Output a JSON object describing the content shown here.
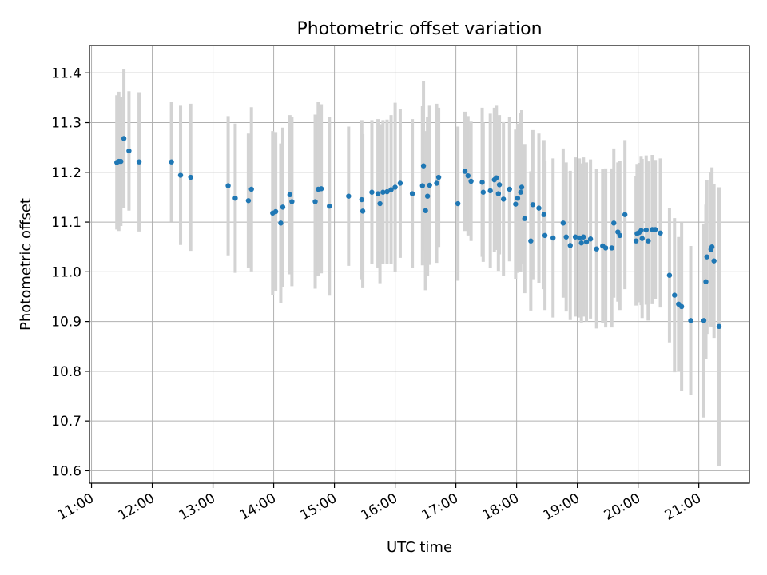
{
  "chart_data": {
    "type": "scatter",
    "title": "Photometric offset variation",
    "xlabel": "UTC time",
    "ylabel": "Photometric offset",
    "xlim": [
      "10:58",
      "21:50"
    ],
    "ylim": [
      10.575,
      11.455
    ],
    "x_ticks": [
      "11:00",
      "12:00",
      "13:00",
      "14:00",
      "15:00",
      "16:00",
      "17:00",
      "18:00",
      "19:00",
      "20:00",
      "21:00"
    ],
    "y_ticks": [
      10.6,
      10.7,
      10.8,
      10.9,
      11.0,
      11.1,
      11.2,
      11.3,
      11.4
    ],
    "y_tick_labels": [
      "10.6",
      "10.7",
      "10.8",
      "10.9",
      "11.0",
      "11.1",
      "11.2",
      "11.3",
      "11.4"
    ],
    "grid": true,
    "colors": {
      "point": "#1f77b4",
      "errorbar": "#d3d3d3"
    },
    "series": [
      {
        "points": [
          [
            "11:25",
            11.22,
            0.135
          ],
          [
            "11:27",
            11.222,
            0.14
          ],
          [
            "11:29",
            11.222,
            0.13
          ],
          [
            "11:32",
            11.268,
            0.14
          ],
          [
            "11:37",
            11.243,
            0.12
          ],
          [
            "11:47",
            11.221,
            0.14
          ],
          [
            "12:19",
            11.221,
            0.12
          ],
          [
            "12:28",
            11.194,
            0.14
          ],
          [
            "12:38",
            11.19,
            0.148
          ],
          [
            "13:15",
            11.173,
            0.14
          ],
          [
            "13:22",
            11.148,
            0.15
          ],
          [
            "13:35",
            11.143,
            0.135
          ],
          [
            "13:38",
            11.166,
            0.165
          ],
          [
            "13:59",
            11.118,
            0.165
          ],
          [
            "14:02",
            11.121,
            0.16
          ],
          [
            "14:07",
            11.098,
            0.16
          ],
          [
            "14:09",
            11.13,
            0.16
          ],
          [
            "14:16",
            11.155,
            0.16
          ],
          [
            "14:18",
            11.141,
            0.17
          ],
          [
            "14:41",
            11.141,
            0.175
          ],
          [
            "14:44",
            11.166,
            0.175
          ],
          [
            "14:47",
            11.167,
            0.17
          ],
          [
            "14:55",
            11.132,
            0.18
          ],
          [
            "15:14",
            11.152,
            0.14
          ],
          [
            "15:27",
            11.145,
            0.16
          ],
          [
            "15:28",
            11.122,
            0.155
          ],
          [
            "15:37",
            11.16,
            0.145
          ],
          [
            "15:43",
            11.157,
            0.15
          ],
          [
            "15:45",
            11.137,
            0.16
          ],
          [
            "15:48",
            11.16,
            0.145
          ],
          [
            "15:52",
            11.161,
            0.145
          ],
          [
            "15:56",
            11.165,
            0.15
          ],
          [
            "16:00",
            11.17,
            0.17
          ],
          [
            "16:05",
            11.178,
            0.15
          ],
          [
            "16:17",
            11.157,
            0.15
          ],
          [
            "16:27",
            11.173,
            0.16
          ],
          [
            "16:28",
            11.213,
            0.17
          ],
          [
            "16:30",
            11.123,
            0.16
          ],
          [
            "16:32",
            11.152,
            0.16
          ],
          [
            "16:34",
            11.174,
            0.16
          ],
          [
            "16:41",
            11.178,
            0.16
          ],
          [
            "16:43",
            11.19,
            0.14
          ],
          [
            "17:02",
            11.137,
            0.155
          ],
          [
            "17:09",
            11.202,
            0.12
          ],
          [
            "17:12",
            11.193,
            0.12
          ],
          [
            "17:15",
            11.182,
            0.12
          ],
          [
            "17:26",
            11.18,
            0.15
          ],
          [
            "17:27",
            11.16,
            0.14
          ],
          [
            "17:34",
            11.163,
            0.155
          ],
          [
            "17:38",
            11.185,
            0.145
          ],
          [
            "17:40",
            11.189,
            0.145
          ],
          [
            "17:42",
            11.157,
            0.155
          ],
          [
            "17:43",
            11.175,
            0.14
          ],
          [
            "17:47",
            11.146,
            0.155
          ],
          [
            "17:53",
            11.166,
            0.145
          ],
          [
            "17:59",
            11.136,
            0.15
          ],
          [
            "18:01",
            11.148,
            0.15
          ],
          [
            "18:04",
            11.16,
            0.16
          ],
          [
            "18:05",
            11.17,
            0.155
          ],
          [
            "18:08",
            11.107,
            0.15
          ],
          [
            "18:14",
            11.062,
            0.14
          ],
          [
            "18:16",
            11.135,
            0.15
          ],
          [
            "18:22",
            11.128,
            0.15
          ],
          [
            "18:27",
            11.115,
            0.15
          ],
          [
            "18:28",
            11.073,
            0.15
          ],
          [
            "18:36",
            11.068,
            0.16
          ],
          [
            "18:46",
            11.098,
            0.15
          ],
          [
            "18:49",
            11.07,
            0.15
          ],
          [
            "18:53",
            11.053,
            0.15
          ],
          [
            "18:58",
            11.07,
            0.16
          ],
          [
            "19:02",
            11.068,
            0.16
          ],
          [
            "19:04",
            11.058,
            0.16
          ],
          [
            "19:06",
            11.07,
            0.16
          ],
          [
            "19:09",
            11.06,
            0.16
          ],
          [
            "19:13",
            11.066,
            0.16
          ],
          [
            "19:19",
            11.046,
            0.16
          ],
          [
            "19:25",
            11.052,
            0.155
          ],
          [
            "19:28",
            11.048,
            0.16
          ],
          [
            "19:34",
            11.048,
            0.16
          ],
          [
            "19:36",
            11.098,
            0.15
          ],
          [
            "19:40",
            11.08,
            0.14
          ],
          [
            "19:42",
            11.073,
            0.15
          ],
          [
            "19:47",
            11.115,
            0.15
          ],
          [
            "19:58",
            11.062,
            0.13
          ],
          [
            "19:59",
            11.077,
            0.14
          ],
          [
            "20:01",
            11.079,
            0.14
          ],
          [
            "20:03",
            11.083,
            0.15
          ],
          [
            "20:04",
            11.067,
            0.16
          ],
          [
            "20:08",
            11.084,
            0.15
          ],
          [
            "20:10",
            11.062,
            0.16
          ],
          [
            "20:14",
            11.085,
            0.15
          ],
          [
            "20:17",
            11.085,
            0.14
          ],
          [
            "20:22",
            11.078,
            0.15
          ],
          [
            "20:31",
            10.993,
            0.135
          ],
          [
            "20:36",
            10.953,
            0.155
          ],
          [
            "20:40",
            10.935,
            0.135
          ],
          [
            "20:43",
            10.93,
            0.17
          ],
          [
            "20:52",
            10.902,
            0.15
          ],
          [
            "21:05",
            10.902,
            0.195
          ],
          [
            "21:07",
            10.98,
            0.155
          ],
          [
            "21:08",
            11.03,
            0.155
          ],
          [
            "21:12",
            11.045,
            0.155
          ],
          [
            "21:13",
            11.05,
            0.16
          ],
          [
            "21:15",
            11.022,
            0.155
          ],
          [
            "21:20",
            10.89,
            0.28
          ]
        ]
      }
    ]
  }
}
